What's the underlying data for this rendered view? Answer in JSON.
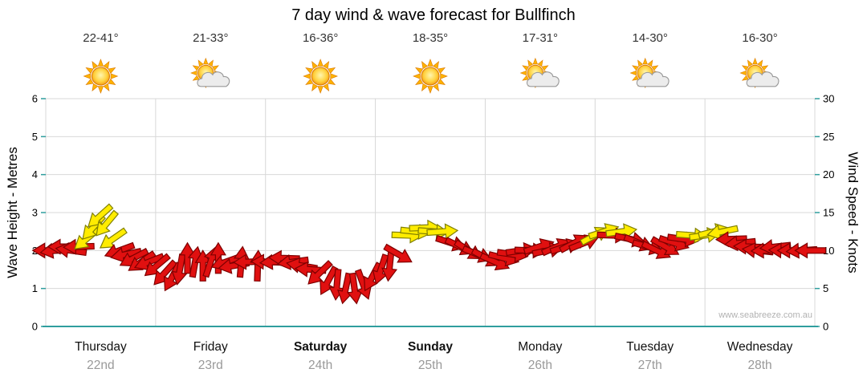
{
  "title": "7 day wind & wave forecast for Bullfinch",
  "watermark": "www.seabreeze.com.au",
  "colors": {
    "arrow_red": "#e01010",
    "arrow_red_outline": "#7e0000",
    "arrow_yellow": "#ffec00",
    "arrow_yellow_outline": "#808000",
    "axis_teal": "#2f9e9e",
    "grid_gray": "#d8d8d8",
    "date_gray": "#999999",
    "temp_color": "#333333",
    "watermark_gray": "#b2b2b2"
  },
  "left_axis": {
    "label": "Wave Height - Metres",
    "min": 0,
    "max": 6,
    "ticks": [
      0,
      1,
      2,
      3,
      4,
      5,
      6
    ]
  },
  "right_axis": {
    "label": "Wind Speed - Knots",
    "min": 0,
    "max": 30,
    "ticks": [
      0,
      5,
      10,
      15,
      20,
      25,
      30
    ]
  },
  "days": [
    {
      "name": "Thursday",
      "date": "22nd",
      "temp": "22-41°",
      "icon": "sunny",
      "bold": false
    },
    {
      "name": "Friday",
      "date": "23rd",
      "temp": "21-33°",
      "icon": "partly-cloudy",
      "bold": false
    },
    {
      "name": "Saturday",
      "date": "24th",
      "temp": "16-36°",
      "icon": "sunny",
      "bold": true
    },
    {
      "name": "Sunday",
      "date": "25th",
      "temp": "18-35°",
      "icon": "sunny",
      "bold": true
    },
    {
      "name": "Monday",
      "date": "26th",
      "temp": "17-31°",
      "icon": "partly-cloudy",
      "bold": false
    },
    {
      "name": "Tuesday",
      "date": "27th",
      "temp": "14-30°",
      "icon": "partly-cloudy",
      "bold": false
    },
    {
      "name": "Wednesday",
      "date": "28th",
      "temp": "16-30°",
      "icon": "partly-cloudy",
      "bold": false
    }
  ],
  "chart_data": {
    "type": "wind-arrows",
    "title": "7 day wind & wave forecast for Bullfinch",
    "x_axis": {
      "categories": [
        "Thursday 22nd",
        "Friday 23rd",
        "Saturday 24th",
        "Sunday 25th",
        "Monday 26th",
        "Tuesday 27th",
        "Wednesday 28th"
      ],
      "x_unit": "day (0 = start of Thursday, 7 = end of Wednesday)"
    },
    "y_axis_left": {
      "label": "Wave Height - Metres",
      "range": [
        0,
        6
      ]
    },
    "y_axis_right": {
      "label": "Wind Speed - Knots",
      "range": [
        0,
        30
      ]
    },
    "grid": true,
    "dir_convention": "degrees clockwise from screen-right (0=right, 90=down, 180=left, 270=up)",
    "arrow_format": [
      "x_day",
      "knots",
      "dir_deg",
      "color r=red y=yellow"
    ],
    "arrows": [
      [
        0.02,
        10,
        180,
        "r"
      ],
      [
        0.09,
        10,
        172,
        "r"
      ],
      [
        0.16,
        10.5,
        180,
        "r"
      ],
      [
        0.23,
        10,
        188,
        "r"
      ],
      [
        0.3,
        10.5,
        178,
        "r"
      ],
      [
        0.37,
        11.5,
        140,
        "y"
      ],
      [
        0.43,
        13,
        132,
        "y"
      ],
      [
        0.49,
        14.5,
        138,
        "y"
      ],
      [
        0.55,
        13.5,
        130,
        "y"
      ],
      [
        0.61,
        11.5,
        145,
        "y"
      ],
      [
        0.67,
        10,
        160,
        "r"
      ],
      [
        0.73,
        9.5,
        168,
        "r"
      ],
      [
        0.8,
        9,
        152,
        "r"
      ],
      [
        0.87,
        8.5,
        146,
        "r"
      ],
      [
        0.94,
        8.5,
        158,
        "r"
      ],
      [
        1.01,
        8,
        140,
        "r"
      ],
      [
        1.08,
        7,
        132,
        "r"
      ],
      [
        1.15,
        6.5,
        118,
        "r"
      ],
      [
        1.22,
        7.5,
        100,
        "r"
      ],
      [
        1.29,
        9,
        270,
        "r"
      ],
      [
        1.36,
        8.5,
        280,
        "r"
      ],
      [
        1.43,
        8,
        270,
        "r"
      ],
      [
        1.5,
        8.5,
        288,
        "r"
      ],
      [
        1.57,
        9,
        270,
        "r"
      ],
      [
        1.64,
        8.5,
        160,
        "r"
      ],
      [
        1.71,
        8,
        170,
        "r"
      ],
      [
        1.78,
        8.5,
        275,
        "r"
      ],
      [
        1.85,
        8.5,
        178,
        "r"
      ],
      [
        1.93,
        8,
        272,
        "r"
      ],
      [
        2.01,
        8.5,
        182,
        "r"
      ],
      [
        2.09,
        8.5,
        176,
        "r"
      ],
      [
        2.17,
        9,
        182,
        "r"
      ],
      [
        2.25,
        8.5,
        172,
        "r"
      ],
      [
        2.33,
        8,
        190,
        "r"
      ],
      [
        2.41,
        7.5,
        184,
        "r"
      ],
      [
        2.49,
        7,
        136,
        "r"
      ],
      [
        2.57,
        6,
        118,
        "r"
      ],
      [
        2.65,
        5.5,
        95,
        "r"
      ],
      [
        2.73,
        5,
        102,
        "r"
      ],
      [
        2.81,
        5,
        82,
        "r"
      ],
      [
        2.89,
        5.5,
        70,
        "r"
      ],
      [
        2.97,
        6.5,
        118,
        "r"
      ],
      [
        3.05,
        7.5,
        108,
        "r"
      ],
      [
        3.13,
        8,
        96,
        "r"
      ],
      [
        3.21,
        9.5,
        30,
        "r"
      ],
      [
        3.29,
        12,
        2,
        "y"
      ],
      [
        3.37,
        12.5,
        6,
        "y"
      ],
      [
        3.45,
        13,
        358,
        "y"
      ],
      [
        3.53,
        12.5,
        4,
        "y"
      ],
      [
        3.61,
        12.5,
        356,
        "y"
      ],
      [
        3.69,
        11,
        18,
        "r"
      ],
      [
        3.77,
        10.5,
        26,
        "r"
      ],
      [
        3.85,
        10,
        32,
        "r"
      ],
      [
        3.93,
        9.5,
        22,
        "r"
      ],
      [
        4.01,
        9,
        28,
        "r"
      ],
      [
        4.09,
        8.5,
        24,
        "r"
      ],
      [
        4.17,
        9,
        14,
        "r"
      ],
      [
        4.25,
        9.5,
        8,
        "r"
      ],
      [
        4.33,
        10,
        352,
        "r"
      ],
      [
        4.41,
        10,
        2,
        "r"
      ],
      [
        4.49,
        10.5,
        342,
        "r"
      ],
      [
        4.57,
        10,
        348,
        "r"
      ],
      [
        4.65,
        10.5,
        336,
        "r"
      ],
      [
        4.73,
        10.5,
        342,
        "r"
      ],
      [
        4.81,
        11,
        332,
        "r"
      ],
      [
        4.9,
        11,
        338,
        "r"
      ],
      [
        5.0,
        12,
        332,
        "y"
      ],
      [
        5.08,
        12.5,
        342,
        "y"
      ],
      [
        5.16,
        12,
        2,
        "r"
      ],
      [
        5.24,
        12.5,
        352,
        "y"
      ],
      [
        5.32,
        11.5,
        12,
        "r"
      ],
      [
        5.4,
        11,
        22,
        "r"
      ],
      [
        5.48,
        10.5,
        16,
        "r"
      ],
      [
        5.56,
        10,
        26,
        "r"
      ],
      [
        5.64,
        10.5,
        30,
        "r"
      ],
      [
        5.72,
        11,
        18,
        "r"
      ],
      [
        5.8,
        11.5,
        8,
        "r"
      ],
      [
        5.88,
        12,
        4,
        "y"
      ],
      [
        6.0,
        12,
        352,
        "y"
      ],
      [
        6.08,
        12.5,
        346,
        "y"
      ],
      [
        6.16,
        12.5,
        168,
        "y"
      ],
      [
        6.24,
        11.5,
        178,
        "r"
      ],
      [
        6.32,
        11,
        174,
        "r"
      ],
      [
        6.4,
        10.5,
        182,
        "r"
      ],
      [
        6.48,
        10,
        186,
        "r"
      ],
      [
        6.56,
        10,
        178,
        "r"
      ],
      [
        6.64,
        10.5,
        174,
        "r"
      ],
      [
        6.72,
        10,
        182,
        "r"
      ],
      [
        6.8,
        10,
        180,
        "r"
      ],
      [
        6.88,
        10,
        176,
        "r"
      ],
      [
        6.96,
        10,
        180,
        "r"
      ]
    ]
  }
}
